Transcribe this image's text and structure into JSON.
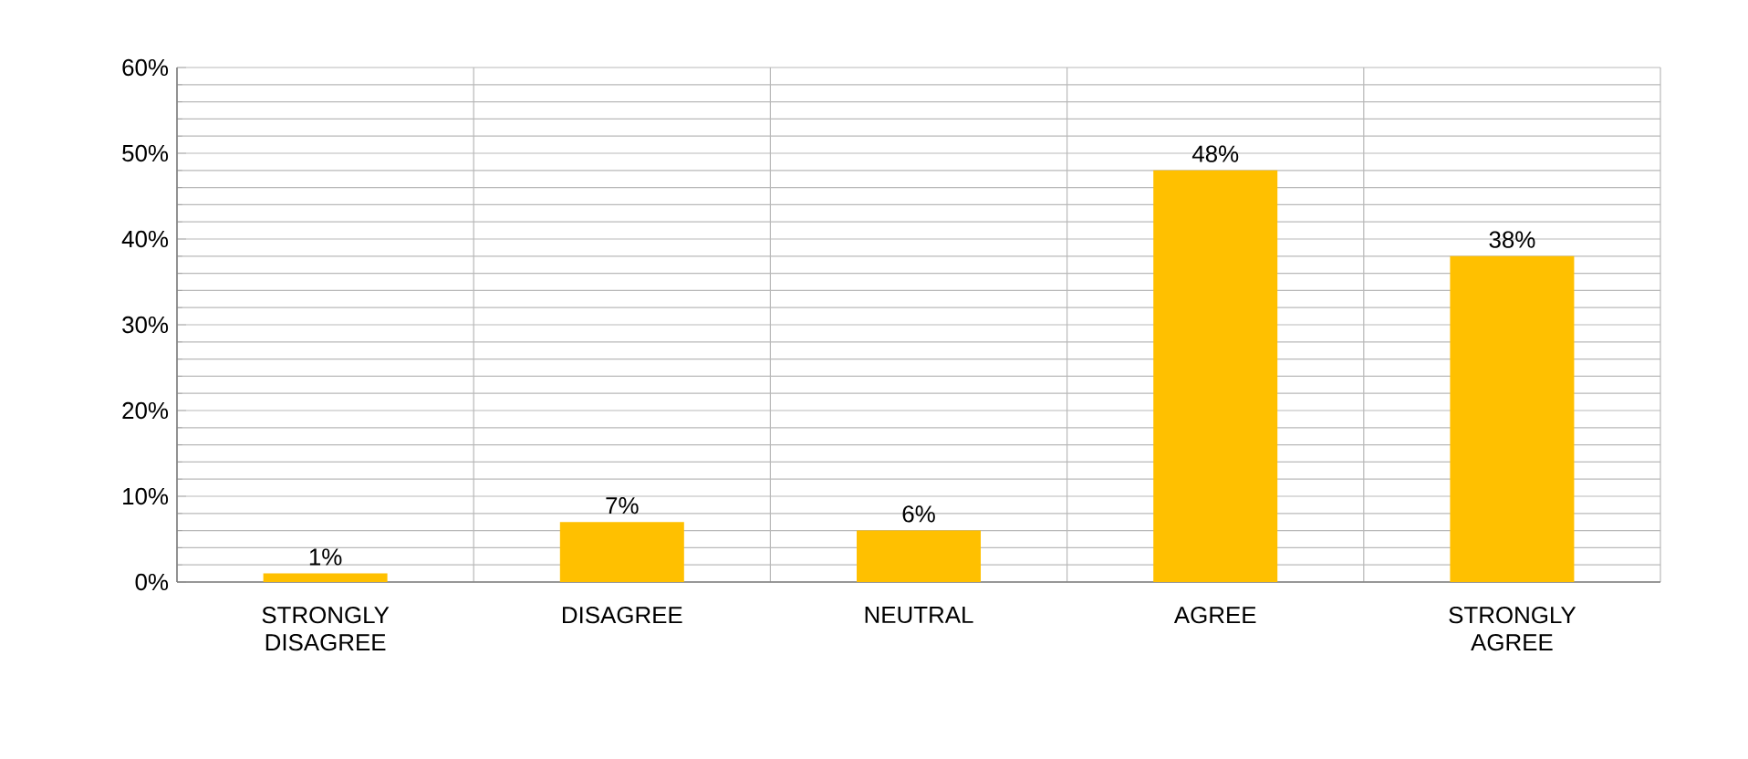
{
  "chart_data": {
    "type": "bar",
    "categories": [
      "STRONGLY DISAGREE",
      "DISAGREE",
      "NEUTRAL",
      "AGREE",
      "STRONGLY AGREE"
    ],
    "values": [
      1,
      7,
      6,
      48,
      38
    ],
    "value_labels": [
      "1%",
      "7%",
      "6%",
      "48%",
      "38%"
    ],
    "color": "#ffc000",
    "ylim": [
      0,
      60
    ],
    "yticks": [
      {
        "value": 0,
        "label": "0%"
      },
      {
        "value": 10,
        "label": "10%"
      },
      {
        "value": 20,
        "label": "20%"
      },
      {
        "value": 30,
        "label": "30%"
      },
      {
        "value": 40,
        "label": "40%"
      },
      {
        "value": 50,
        "label": "50%"
      },
      {
        "value": 60,
        "label": "60%"
      }
    ],
    "grid": true
  }
}
